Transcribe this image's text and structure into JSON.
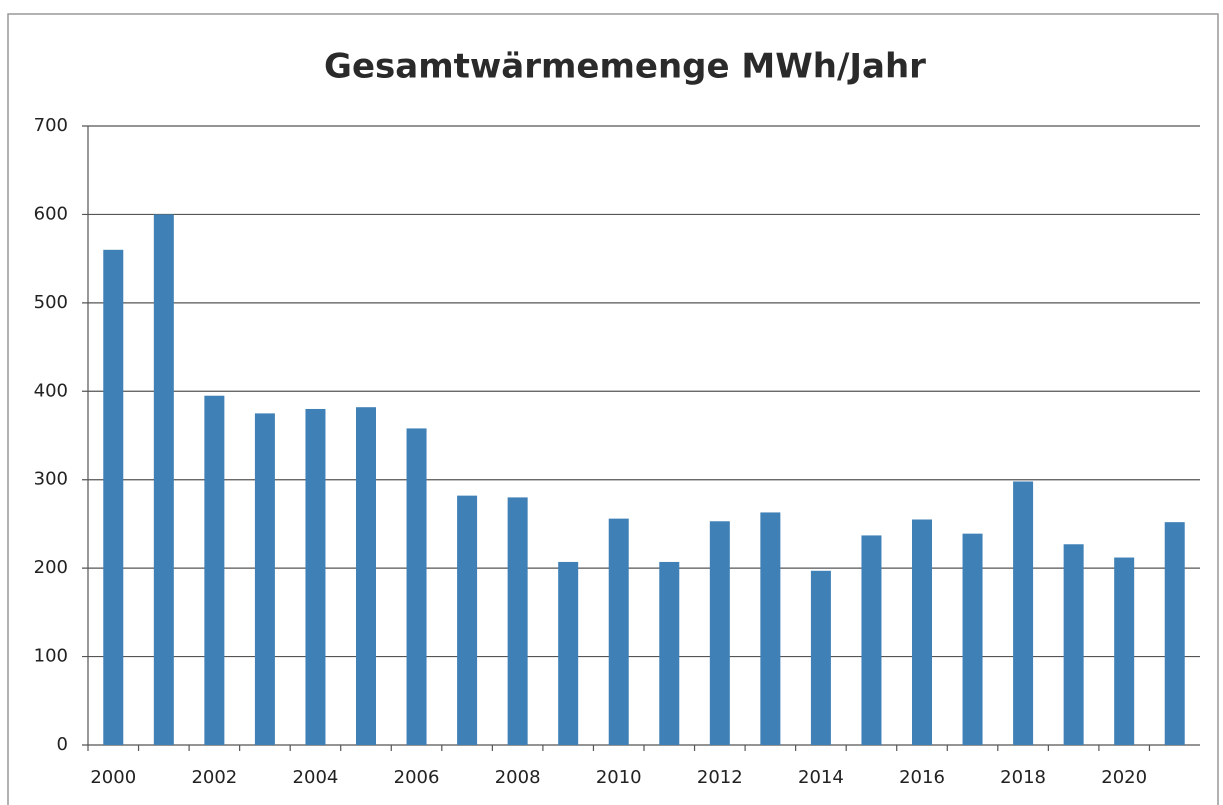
{
  "chart_data": {
    "type": "bar",
    "title": "Gesamtwärmemenge MWh/Jahr",
    "categories": [
      "2000",
      null,
      "2002",
      null,
      "2004",
      null,
      "2006",
      null,
      "2008",
      null,
      "2010",
      null,
      "2012",
      null,
      "2014",
      null,
      "2016",
      null,
      "2018",
      null,
      "2020",
      null
    ],
    "values": [
      560,
      600,
      395,
      375,
      380,
      382,
      358,
      282,
      280,
      207,
      256,
      207,
      253,
      263,
      197,
      237,
      255,
      239,
      298,
      227,
      212,
      252
    ],
    "color": "#3f80b6",
    "ylim": [
      0,
      700
    ],
    "yticks": [
      0,
      100,
      200,
      300,
      400,
      500,
      600,
      700
    ],
    "grid": true
  }
}
